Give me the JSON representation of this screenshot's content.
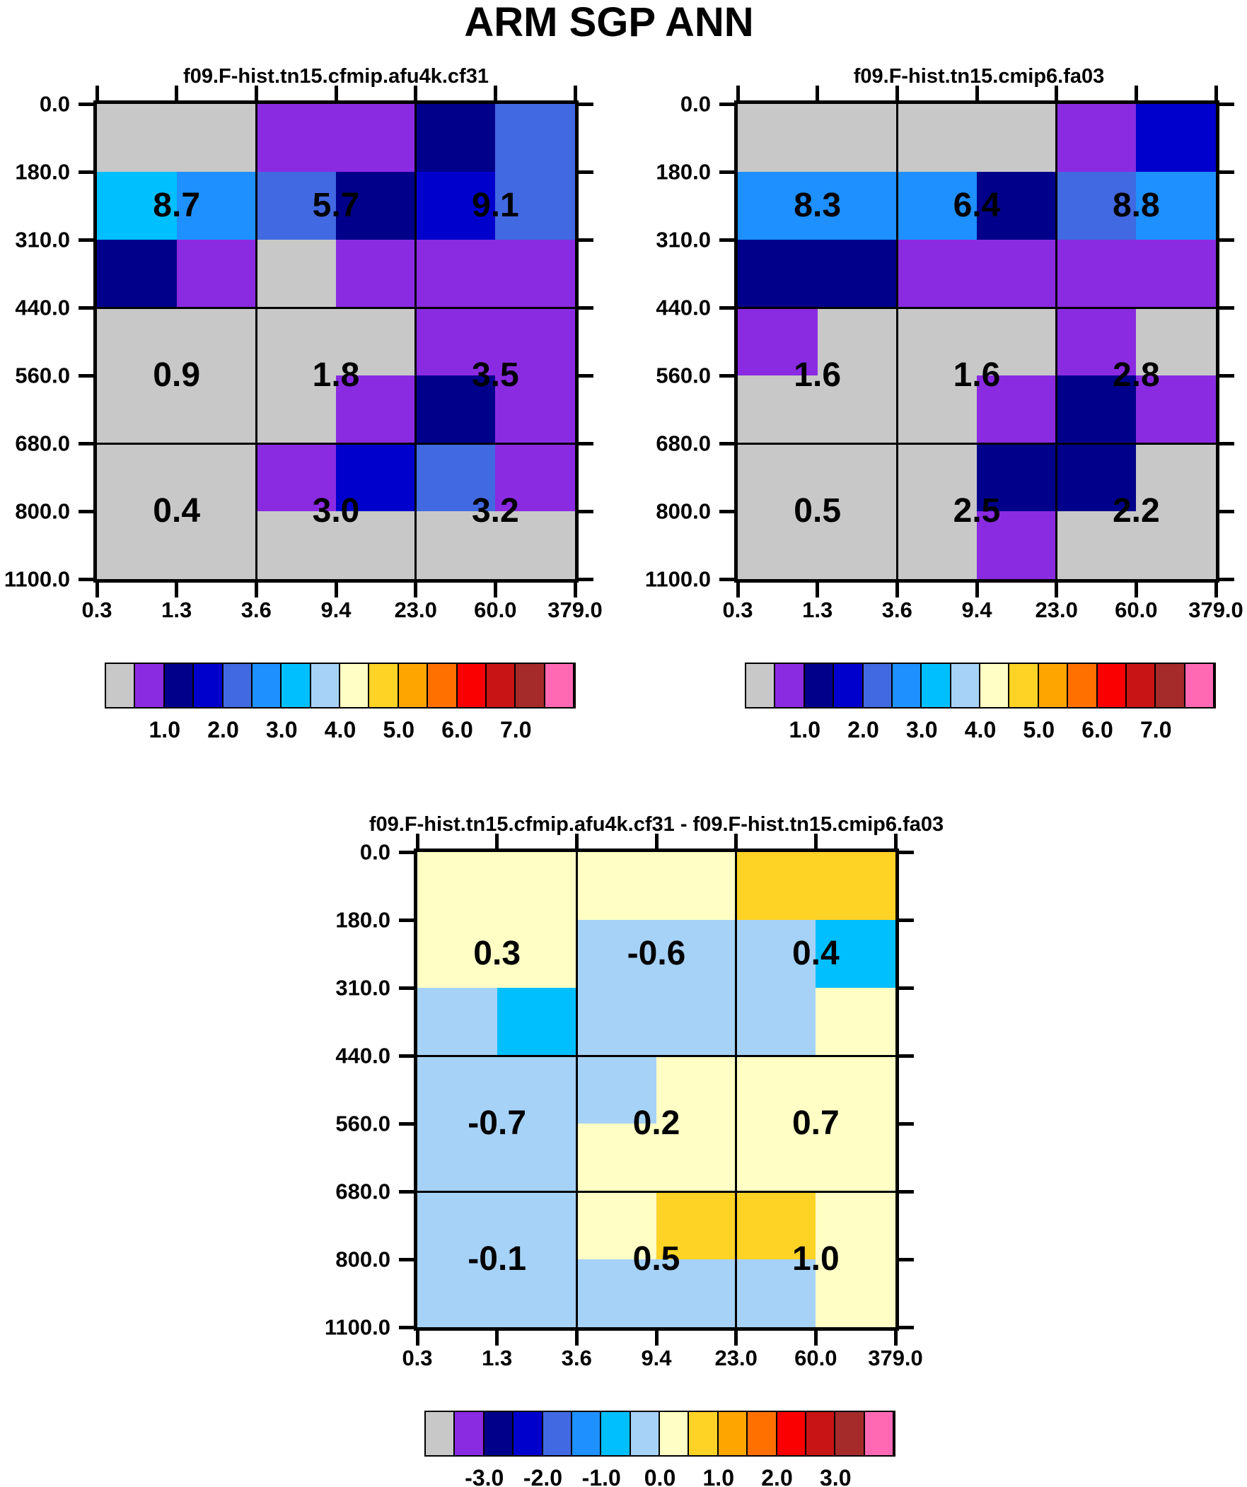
{
  "page_title": "ARM SGP ANN",
  "palette": {
    "gray": "#c8c8c8",
    "purple": "#8a2be2",
    "navy": "#00008b",
    "blue": "#0000cd",
    "royal": "#4169e1",
    "dodger": "#1e90ff",
    "deepsky": "#00bfff",
    "lightblue": "#a6d2f7",
    "paleyellow": "#ffffc5",
    "gold": "#ffd226",
    "orange": "#ffa500",
    "darkorange": "#ff7000",
    "red": "#fa0000",
    "darkred": "#c81414",
    "brown": "#a52a2a",
    "pink": "#ff69b4"
  },
  "colorbar_order": [
    "gray",
    "purple",
    "navy",
    "blue",
    "royal",
    "dodger",
    "deepsky",
    "lightblue",
    "paleyellow",
    "gold",
    "orange",
    "darkorange",
    "red",
    "darkred",
    "brown",
    "pink"
  ],
  "chart_data": [
    {
      "type": "heatmap",
      "id": "left-panel",
      "title": "f09.F-hist.tn15.cfmip.afu4k.cf31",
      "x_tick_labels": [
        "0.3",
        "1.3",
        "3.6",
        "9.4",
        "23.0",
        "60.0",
        "379.0"
      ],
      "y_tick_labels": [
        "0.0",
        "180.0",
        "310.0",
        "440.0",
        "560.0",
        "680.0",
        "800.0",
        "1100.0"
      ],
      "x_edges": [
        0.3,
        1.3,
        3.6,
        9.4,
        23.0,
        60.0,
        379.0
      ],
      "y_edges": [
        0.0,
        180.0,
        310.0,
        440.0,
        560.0,
        680.0,
        800.0,
        1100.0
      ],
      "cell_colors": [
        [
          "gray",
          "gray",
          "purple",
          "purple",
          "navy",
          "royal"
        ],
        [
          "deepsky",
          "dodger",
          "royal",
          "navy",
          "blue",
          "royal"
        ],
        [
          "navy",
          "purple",
          "gray",
          "purple",
          "purple",
          "purple"
        ],
        [
          "gray",
          "gray",
          "gray",
          "gray",
          "purple",
          "purple"
        ],
        [
          "gray",
          "gray",
          "gray",
          "purple",
          "navy",
          "purple"
        ],
        [
          "gray",
          "gray",
          "purple",
          "blue",
          "royal",
          "purple"
        ],
        [
          "gray",
          "gray",
          "gray",
          "gray",
          "gray",
          "gray"
        ]
      ],
      "block_values": [
        [
          "8.7",
          "5.7",
          "9.1"
        ],
        [
          "0.9",
          "1.8",
          "3.5"
        ],
        [
          "0.4",
          "3.0",
          "3.2"
        ]
      ],
      "colorbar_labels": [
        "1.0",
        "2.0",
        "3.0",
        "4.0",
        "5.0",
        "6.0",
        "7.0"
      ]
    },
    {
      "type": "heatmap",
      "id": "right-panel",
      "title": "f09.F-hist.tn15.cmip6.fa03",
      "x_tick_labels": [
        "0.3",
        "1.3",
        "3.6",
        "9.4",
        "23.0",
        "60.0",
        "379.0"
      ],
      "y_tick_labels": [
        "0.0",
        "180.0",
        "310.0",
        "440.0",
        "560.0",
        "680.0",
        "800.0",
        "1100.0"
      ],
      "x_edges": [
        0.3,
        1.3,
        3.6,
        9.4,
        23.0,
        60.0,
        379.0
      ],
      "y_edges": [
        0.0,
        180.0,
        310.0,
        440.0,
        560.0,
        680.0,
        800.0,
        1100.0
      ],
      "cell_colors": [
        [
          "gray",
          "gray",
          "gray",
          "gray",
          "purple",
          "blue"
        ],
        [
          "dodger",
          "dodger",
          "dodger",
          "navy",
          "royal",
          "dodger"
        ],
        [
          "navy",
          "navy",
          "purple",
          "purple",
          "purple",
          "purple"
        ],
        [
          "purple",
          "gray",
          "gray",
          "gray",
          "purple",
          "gray"
        ],
        [
          "gray",
          "gray",
          "gray",
          "purple",
          "navy",
          "purple"
        ],
        [
          "gray",
          "gray",
          "gray",
          "navy",
          "navy",
          "gray"
        ],
        [
          "gray",
          "gray",
          "gray",
          "purple",
          "gray",
          "gray"
        ]
      ],
      "block_values": [
        [
          "8.3",
          "6.4",
          "8.8"
        ],
        [
          "1.6",
          "1.6",
          "2.8"
        ],
        [
          "0.5",
          "2.5",
          "2.2"
        ]
      ],
      "colorbar_labels": [
        "1.0",
        "2.0",
        "3.0",
        "4.0",
        "5.0",
        "6.0",
        "7.0"
      ]
    },
    {
      "type": "heatmap",
      "id": "difference-panel",
      "title": "f09.F-hist.tn15.cfmip.afu4k.cf31 - f09.F-hist.tn15.cmip6.fa03",
      "x_tick_labels": [
        "0.3",
        "1.3",
        "3.6",
        "9.4",
        "23.0",
        "60.0",
        "379.0"
      ],
      "y_tick_labels": [
        "0.0",
        "180.0",
        "310.0",
        "440.0",
        "560.0",
        "680.0",
        "800.0",
        "1100.0"
      ],
      "x_edges": [
        0.3,
        1.3,
        3.6,
        9.4,
        23.0,
        60.0,
        379.0
      ],
      "y_edges": [
        0.0,
        180.0,
        310.0,
        440.0,
        560.0,
        680.0,
        800.0,
        1100.0
      ],
      "cell_colors": [
        [
          "paleyellow",
          "paleyellow",
          "paleyellow",
          "paleyellow",
          "gold",
          "gold"
        ],
        [
          "paleyellow",
          "paleyellow",
          "lightblue",
          "lightblue",
          "lightblue",
          "deepsky"
        ],
        [
          "lightblue",
          "deepsky",
          "lightblue",
          "lightblue",
          "lightblue",
          "paleyellow"
        ],
        [
          "lightblue",
          "lightblue",
          "lightblue",
          "paleyellow",
          "paleyellow",
          "paleyellow"
        ],
        [
          "lightblue",
          "lightblue",
          "paleyellow",
          "paleyellow",
          "paleyellow",
          "paleyellow"
        ],
        [
          "lightblue",
          "lightblue",
          "paleyellow",
          "gold",
          "gold",
          "paleyellow"
        ],
        [
          "lightblue",
          "lightblue",
          "lightblue",
          "lightblue",
          "lightblue",
          "paleyellow"
        ]
      ],
      "block_values": [
        [
          "0.3",
          "-0.6",
          "0.4"
        ],
        [
          "-0.7",
          "0.2",
          "0.7"
        ],
        [
          "-0.1",
          "0.5",
          "1.0"
        ]
      ],
      "colorbar_labels": [
        "-3.0",
        "-2.0",
        "-1.0",
        "0.0",
        "1.0",
        "2.0",
        "3.0"
      ]
    }
  ]
}
